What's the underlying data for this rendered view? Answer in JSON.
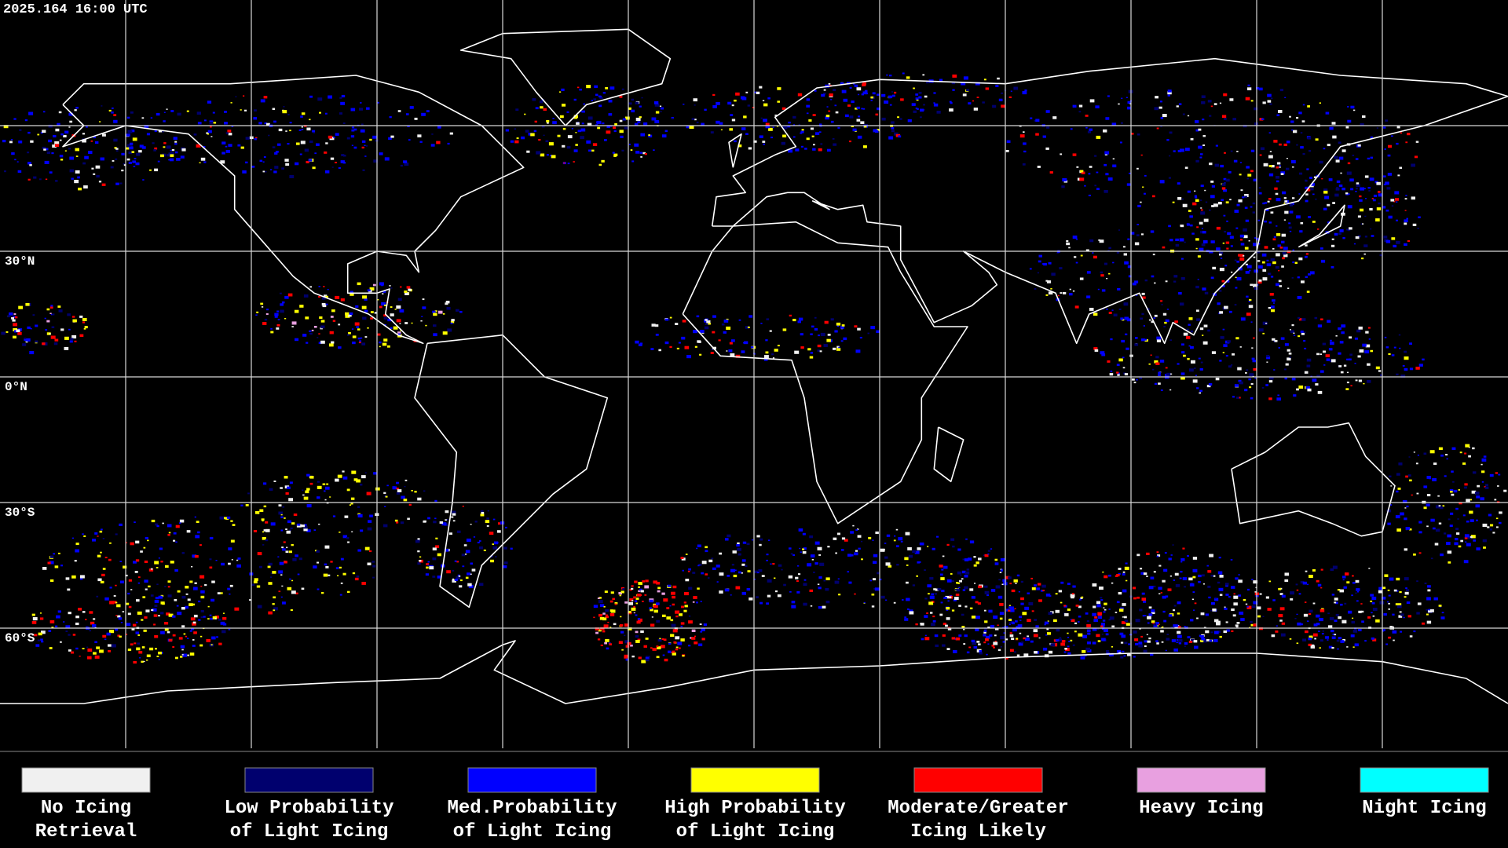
{
  "header": {
    "title": "2025.164 16:00 UTC"
  },
  "map": {
    "lat_labels": [
      "30°N",
      "0°N",
      "30°S",
      "60°S"
    ]
  },
  "legend": [
    {
      "lines": [
        "No Icing",
        "Retrieval"
      ],
      "color": "#f0f0f0"
    },
    {
      "lines": [
        "Low Probability",
        "of Light Icing"
      ],
      "color": "#00006e"
    },
    {
      "lines": [
        "Med.Probability",
        "of Light Icing"
      ],
      "color": "#0000ff"
    },
    {
      "lines": [
        "High Probability",
        "of Light Icing"
      ],
      "color": "#ffff00"
    },
    {
      "lines": [
        "Moderate/Greater",
        "Icing Likely"
      ],
      "color": "#ff0000"
    },
    {
      "lines": [
        "Heavy Icing"
      ],
      "color": "#e8a0e0"
    },
    {
      "lines": [
        "Night Icing"
      ],
      "color": "#00ffff"
    }
  ]
}
